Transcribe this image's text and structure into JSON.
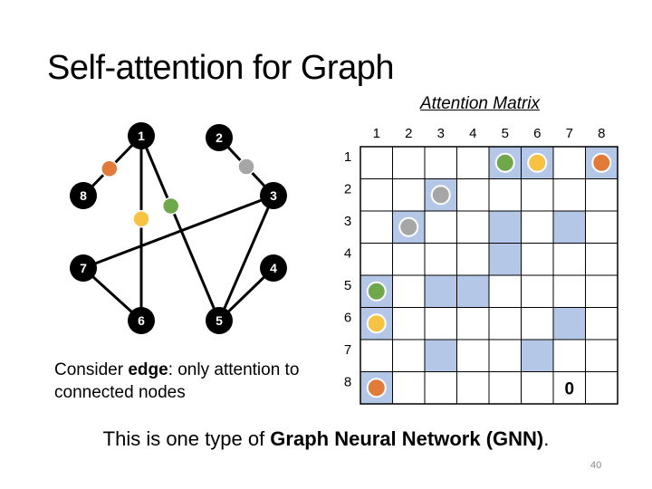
{
  "title": "Self-attention for Graph",
  "matrix_title": "Attention Matrix",
  "caption": {
    "prefix": "Consider ",
    "bold": "edge",
    "suffix": ": only attention to connected nodes"
  },
  "footer": {
    "prefix": "This is one type of ",
    "bold": "Graph Neural Network (GNN)",
    "suffix": "."
  },
  "page_number": "40",
  "colors": {
    "orange": "#e07b3a",
    "gray": "#a6a6a6",
    "yellow": "#f5c242",
    "green": "#6fa84a",
    "cell_fill": "#b4c7e7",
    "node": "#000000"
  },
  "graph": {
    "nodes": [
      "1",
      "2",
      "3",
      "4",
      "5",
      "6",
      "7",
      "8"
    ],
    "edges": [
      {
        "from": "1",
        "to": "8",
        "color": "orange"
      },
      {
        "from": "1",
        "to": "6",
        "color": "yellow"
      },
      {
        "from": "1",
        "to": "5",
        "color": "green"
      },
      {
        "from": "2",
        "to": "3",
        "color": "gray"
      },
      {
        "from": "3",
        "to": "7",
        "color": null
      },
      {
        "from": "3",
        "to": "5",
        "color": null
      },
      {
        "from": "4",
        "to": "5",
        "color": null
      },
      {
        "from": "7",
        "to": "6",
        "color": null
      }
    ]
  },
  "matrix": {
    "col_labels": [
      "1",
      "2",
      "3",
      "4",
      "5",
      "6",
      "7",
      "8"
    ],
    "row_labels": [
      "1",
      "2",
      "3",
      "4",
      "5",
      "6",
      "7",
      "8"
    ],
    "filled": [
      [
        1,
        5
      ],
      [
        1,
        6
      ],
      [
        1,
        8
      ],
      [
        2,
        3
      ],
      [
        3,
        2
      ],
      [
        3,
        5
      ],
      [
        3,
        7
      ],
      [
        4,
        5
      ],
      [
        5,
        1
      ],
      [
        5,
        3
      ],
      [
        5,
        4
      ],
      [
        6,
        1
      ],
      [
        6,
        7
      ],
      [
        7,
        3
      ],
      [
        7,
        6
      ],
      [
        8,
        1
      ]
    ],
    "dots": [
      {
        "row": 1,
        "col": 5,
        "color": "green"
      },
      {
        "row": 1,
        "col": 6,
        "color": "yellow"
      },
      {
        "row": 1,
        "col": 8,
        "color": "orange"
      },
      {
        "row": 2,
        "col": 3,
        "color": "gray"
      },
      {
        "row": 3,
        "col": 2,
        "color": "gray"
      },
      {
        "row": 5,
        "col": 1,
        "color": "green"
      },
      {
        "row": 6,
        "col": 1,
        "color": "yellow"
      },
      {
        "row": 8,
        "col": 1,
        "color": "orange"
      }
    ],
    "cell_text": [
      {
        "row": 8,
        "col": 7,
        "text": "0"
      }
    ]
  }
}
